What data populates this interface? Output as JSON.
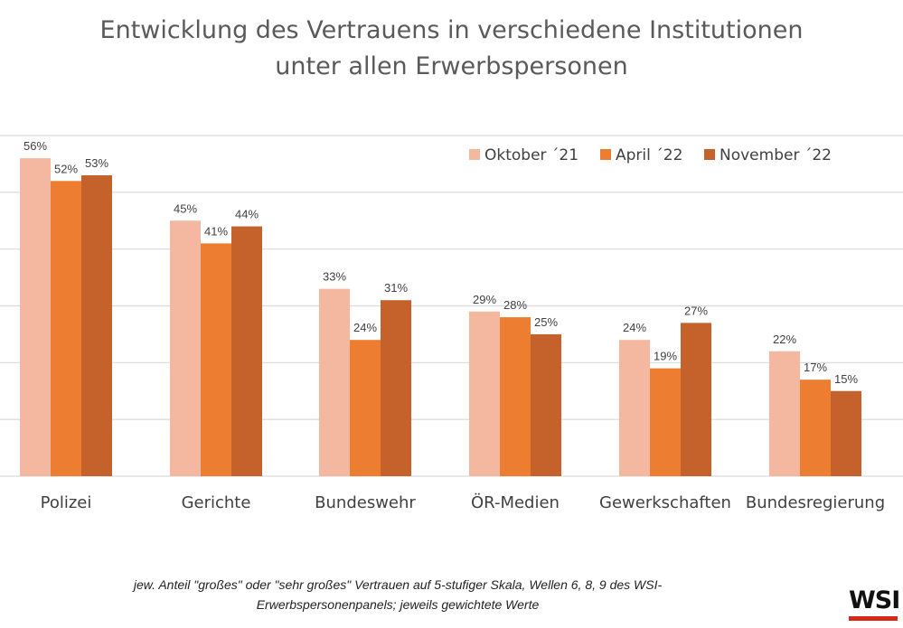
{
  "chart_data": {
    "type": "bar",
    "title": [
      "Entwicklung des Vertrauens in verschiedene Institutionen",
      "unter allen Erwerbspersonen"
    ],
    "categories": [
      "Polizei",
      "Gerichte",
      "Bundeswehr",
      "ÖR-Medien",
      "Gewerkschaften",
      "Bundesregierung"
    ],
    "series": [
      {
        "name": "Oktober ´21",
        "color": "#f4b8a0",
        "values": [
          56,
          45,
          33,
          29,
          24,
          22
        ]
      },
      {
        "name": "April ´22",
        "color": "#ed7d31",
        "values": [
          52,
          41,
          24,
          28,
          19,
          17
        ]
      },
      {
        "name": "November ´22",
        "color": "#c5612a",
        "values": [
          53,
          44,
          31,
          25,
          27,
          15
        ]
      }
    ],
    "value_suffix": "%",
    "ylim": [
      0,
      60
    ],
    "grid": true,
    "legend": "top-right"
  },
  "footnote": [
    "jew. Anteil \"großes\" oder \"sehr großes\" Vertrauen auf 5-stufiger Skala, Wellen 6, 8, 9 des WSI-",
    "Erwerbspersonenpanels; jeweils gewichtete Werte"
  ],
  "logo": {
    "text": "WSI",
    "accent_color": "#d62718"
  }
}
